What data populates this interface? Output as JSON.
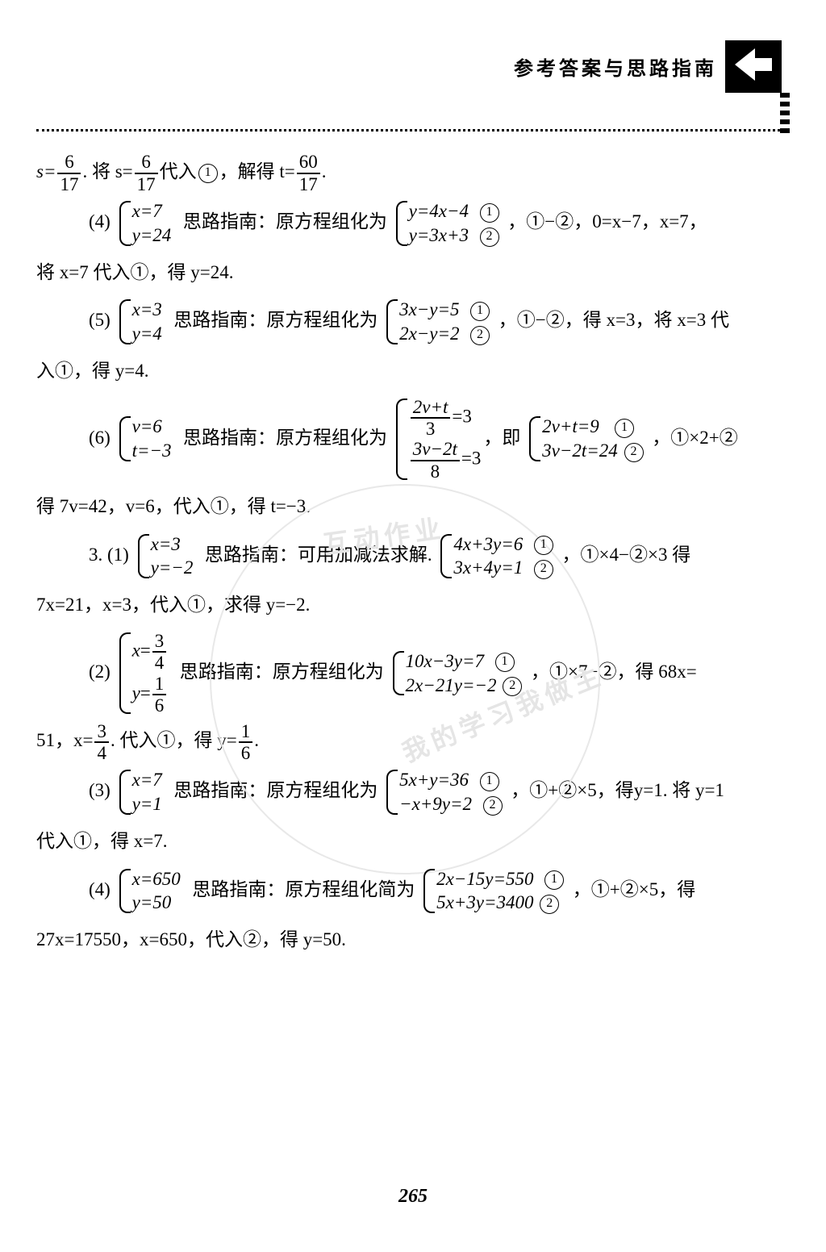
{
  "header": {
    "title": "参考答案与思路指南"
  },
  "pagenum": "265",
  "watermark": {
    "line1": "互动作业",
    "line2": "我的学习我做主"
  },
  "labels": {
    "silu": "思路指南：",
    "yuanfang": "原方程组化为",
    "yuanfangjian": "原方程组化简为",
    "keyong": "可用加减法求解.",
    "ji": "即",
    "de": "得",
    "jiang": "将",
    "dairu": "代入",
    "qiude": "求得",
    "jiede": "解得"
  },
  "lines": {
    "l1a": "s=",
    "l1b": ". 将 s=",
    "l1c": "代入",
    "l1d": "，解得 t=",
    "p4_num": "(4)",
    "p4_sol_x": "x=7",
    "p4_sol_y": "y=24",
    "p4_eq1": "y=4x−4",
    "p4_eq2": "y=3x+3",
    "p4_tail": "，①−②，0=x−7，x=7，",
    "p4_l2": "将 x=7 代入①，得 y=24.",
    "p5_num": "(5)",
    "p5_sol_x": "x=3",
    "p5_sol_y": "y=4",
    "p5_eq1": "3x−y=5",
    "p5_eq2": "2x−y=2",
    "p5_tail": "，①−②，得 x=3，将 x=3 代",
    "p5_l2": "入①，得 y=4.",
    "p6_num": "(6)",
    "p6_sol_v": "v=6",
    "p6_sol_t": "t=−3",
    "p6_f1n": "2v+t",
    "p6_f1d": "3",
    "p6_f2n": "3v−2t",
    "p6_f2d": "8",
    "p6_eq1": "2v+t=9",
    "p6_eq2": "3v−2t=24",
    "p6_tail": "，①×2+②",
    "p6_l2": "得 7v=42，v=6，代入①，得 t=−3.",
    "q3_1_num": "3. (1)",
    "q3_1_sol_x": "x=3",
    "q3_1_sol_y": "y=−2",
    "q3_1_eq1": "4x+3y=6",
    "q3_1_eq2": "3x+4y=1",
    "q3_1_tail": "，①×4−②×3 得",
    "q3_1_l2": "7x=21，x=3，代入①，求得 y=−2.",
    "q3_2_num": "(2)",
    "q3_2_eq1": "10x−3y=7",
    "q3_2_eq2": "2x−21y=−2",
    "q3_2_tail": "，①×7−②，得 68x=",
    "q3_2_l2a": "51，x=",
    "q3_2_l2b": ". 代入①，得 y=",
    "q3_3_num": "(3)",
    "q3_3_sol_x": "x=7",
    "q3_3_sol_y": "y=1",
    "q3_3_eq1": "5x+y=36",
    "q3_3_eq2": "−x+9y=2",
    "q3_3_tail": "，①+②×5，得y=1. 将 y=1",
    "q3_3_l2": "代入①，得 x=7.",
    "q3_4_num": "(4)",
    "q3_4_sol_x": "x=650",
    "q3_4_sol_y": "y=50",
    "q3_4_eq1": "2x−15y=550",
    "q3_4_eq2": "5x+3y=3400",
    "q3_4_tail": "，①+②×5，得",
    "q3_4_l2": "27x=17550，x=650，代入②，得 y=50."
  },
  "fracs": {
    "f6_17": {
      "n": "6",
      "d": "17"
    },
    "f60_17": {
      "n": "60",
      "d": "17"
    },
    "f3_4": {
      "n": "3",
      "d": "4"
    },
    "f1_6": {
      "n": "1",
      "d": "6"
    }
  }
}
